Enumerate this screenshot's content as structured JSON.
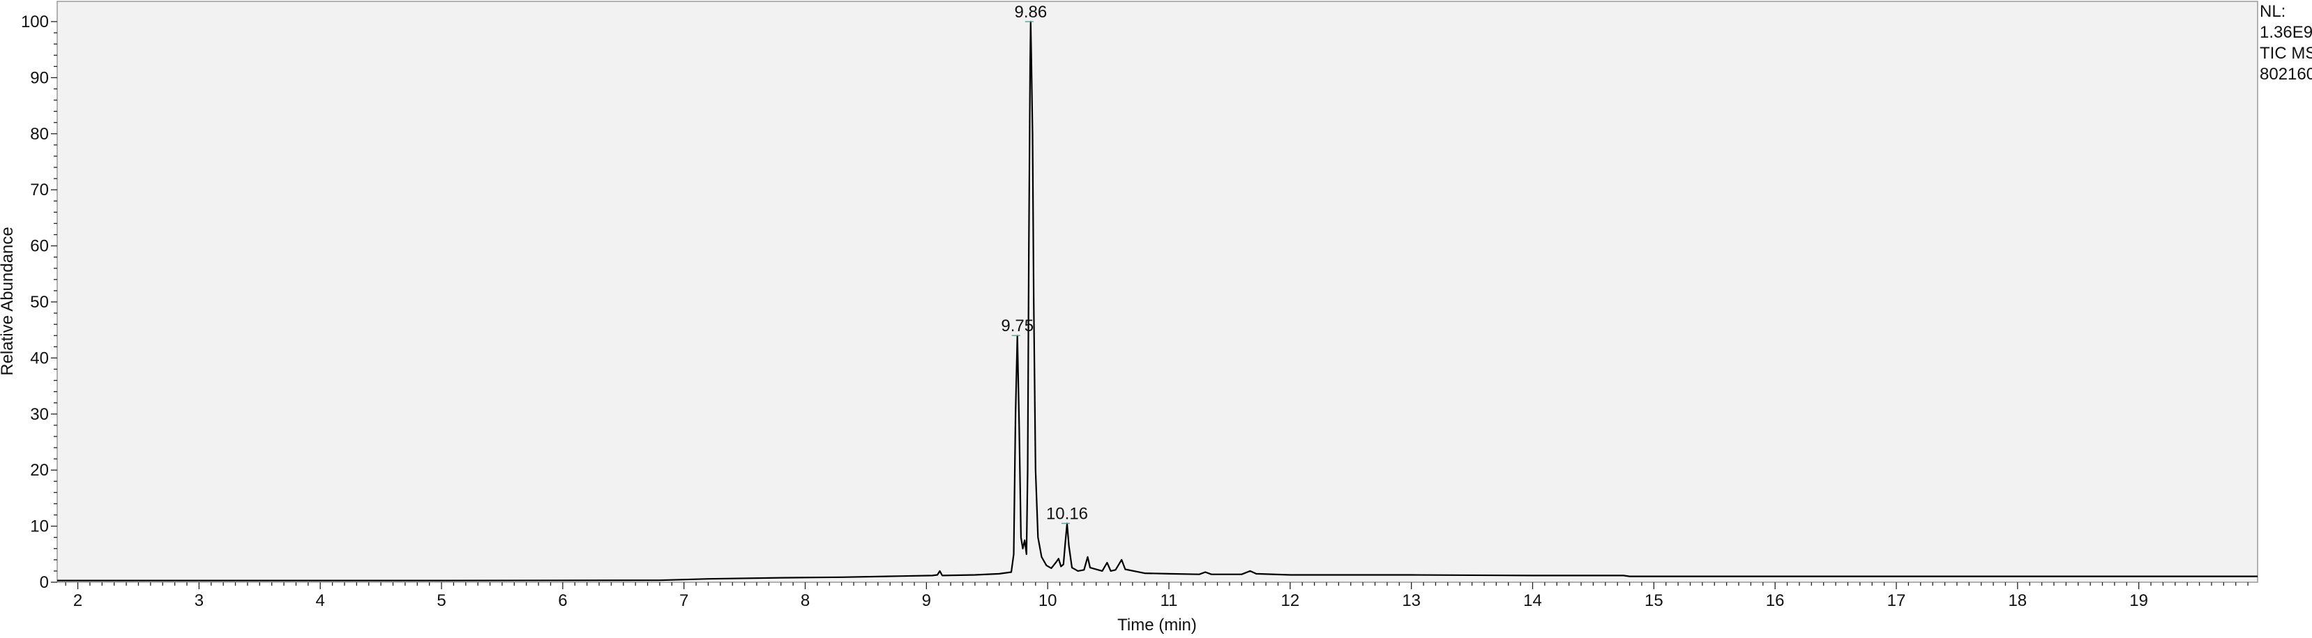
{
  "chart_data": {
    "type": "line",
    "xlabel": "Time (min)",
    "ylabel": "Relative Abundance",
    "xlim": [
      1.83,
      19.98
    ],
    "ylim": [
      0,
      100
    ],
    "x_ticks": [
      2,
      3,
      4,
      5,
      6,
      7,
      8,
      9,
      10,
      11,
      12,
      13,
      14,
      15,
      16,
      17,
      18,
      19
    ],
    "y_ticks": [
      0,
      10,
      20,
      30,
      40,
      50,
      60,
      70,
      80,
      90,
      100
    ],
    "grid": false,
    "colors": {
      "trace": "#000000",
      "plot_background": "#f2f2f2",
      "marker": "#5aa89a"
    },
    "peak_labels": [
      {
        "text": "9.86",
        "x": 9.86,
        "y": 100
      },
      {
        "text": "9.75",
        "x": 9.75,
        "y": 44
      },
      {
        "text": "10.16",
        "x": 10.16,
        "y": 10.5
      }
    ],
    "side_labels": [
      "NL:",
      "1.36E9",
      "TIC  MS",
      "802160"
    ],
    "series": [
      {
        "points": [
          [
            1.83,
            0.3
          ],
          [
            3,
            0.3
          ],
          [
            5,
            0.3
          ],
          [
            6.8,
            0.35
          ],
          [
            7.2,
            0.6
          ],
          [
            7.8,
            0.8
          ],
          [
            8.3,
            0.9
          ],
          [
            8.8,
            1.1
          ],
          [
            9.05,
            1.2
          ],
          [
            9.09,
            1.3
          ],
          [
            9.11,
            2.0
          ],
          [
            9.13,
            1.2
          ],
          [
            9.4,
            1.3
          ],
          [
            9.6,
            1.5
          ],
          [
            9.7,
            1.8
          ],
          [
            9.72,
            5.0
          ],
          [
            9.735,
            30.0
          ],
          [
            9.75,
            44.0
          ],
          [
            9.765,
            28.0
          ],
          [
            9.78,
            8.0
          ],
          [
            9.795,
            6.0
          ],
          [
            9.81,
            7.5
          ],
          [
            9.825,
            5.0
          ],
          [
            9.835,
            20.0
          ],
          [
            9.845,
            60.0
          ],
          [
            9.855,
            92.0
          ],
          [
            9.86,
            100.0
          ],
          [
            9.865,
            94.0
          ],
          [
            9.875,
            80.0
          ],
          [
            9.885,
            50.0
          ],
          [
            9.9,
            20.0
          ],
          [
            9.92,
            8.0
          ],
          [
            9.95,
            4.5
          ],
          [
            9.99,
            3.0
          ],
          [
            10.03,
            2.5
          ],
          [
            10.07,
            3.6
          ],
          [
            10.09,
            4.2
          ],
          [
            10.11,
            2.8
          ],
          [
            10.13,
            3.2
          ],
          [
            10.145,
            7.0
          ],
          [
            10.16,
            10.5
          ],
          [
            10.175,
            6.5
          ],
          [
            10.2,
            2.6
          ],
          [
            10.25,
            2.0
          ],
          [
            10.3,
            2.2
          ],
          [
            10.33,
            4.5
          ],
          [
            10.35,
            2.6
          ],
          [
            10.45,
            2.0
          ],
          [
            10.49,
            3.5
          ],
          [
            10.52,
            2.0
          ],
          [
            10.56,
            2.2
          ],
          [
            10.61,
            4.0
          ],
          [
            10.64,
            2.3
          ],
          [
            10.8,
            1.6
          ],
          [
            11.0,
            1.5
          ],
          [
            11.25,
            1.4
          ],
          [
            11.3,
            1.8
          ],
          [
            11.35,
            1.4
          ],
          [
            11.6,
            1.4
          ],
          [
            11.67,
            2.0
          ],
          [
            11.72,
            1.5
          ],
          [
            12.0,
            1.3
          ],
          [
            13.0,
            1.3
          ],
          [
            14.0,
            1.2
          ],
          [
            14.75,
            1.2
          ],
          [
            14.8,
            1.05
          ],
          [
            16.0,
            1.05
          ],
          [
            18.0,
            1.05
          ],
          [
            19.98,
            1.05
          ]
        ]
      }
    ]
  }
}
